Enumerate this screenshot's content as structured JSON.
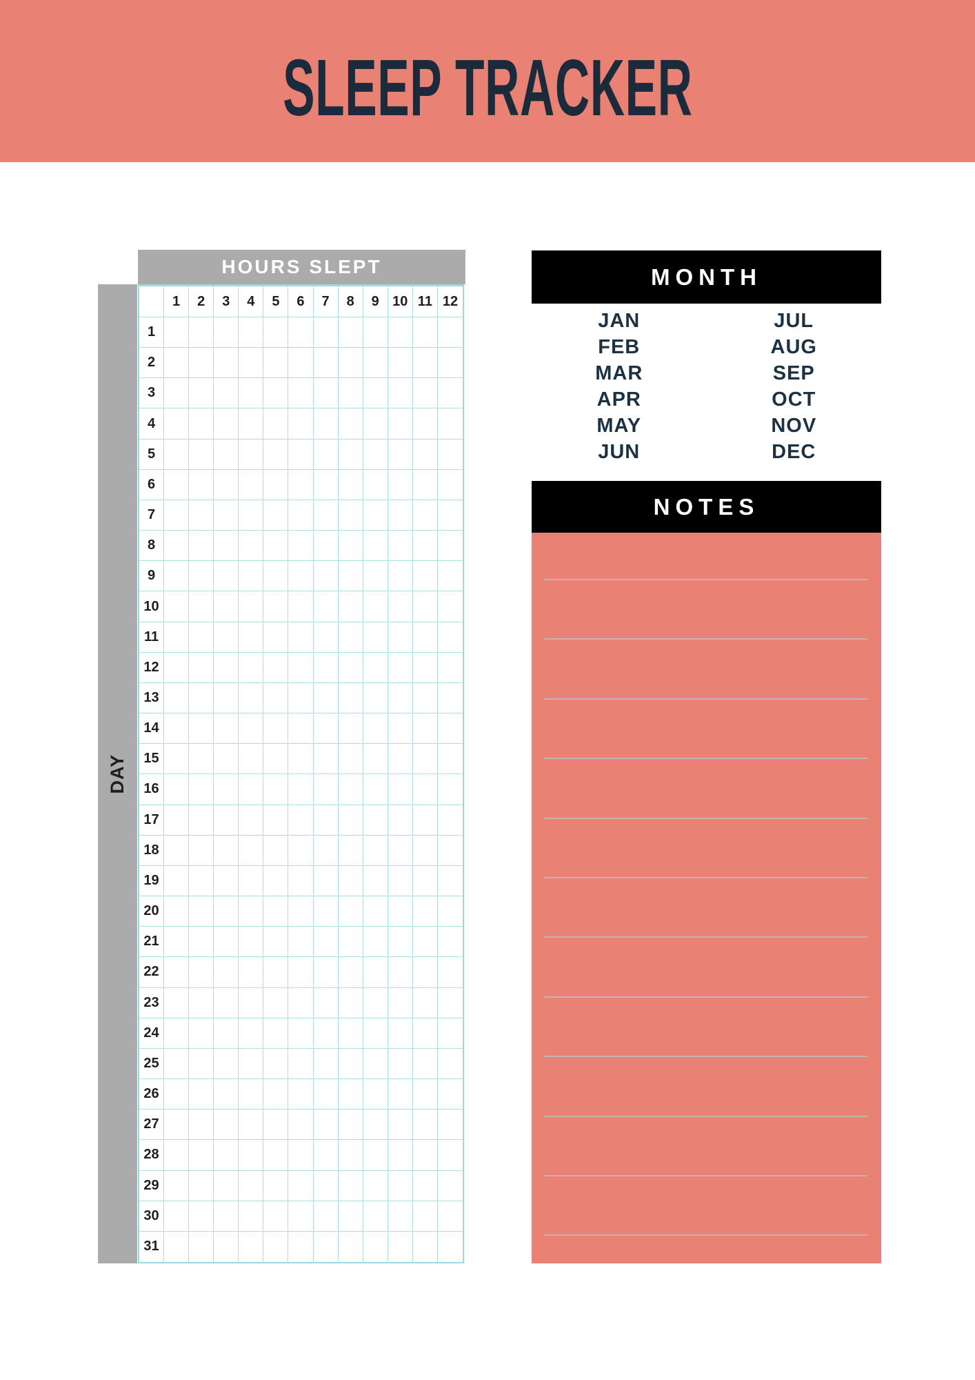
{
  "title": "SLEEP TRACKER",
  "hours_slept": {
    "header": "HOURS SLEPT",
    "hours": [
      "1",
      "2",
      "3",
      "4",
      "5",
      "6",
      "7",
      "8",
      "9",
      "10",
      "11",
      "12"
    ]
  },
  "day": {
    "label": "DAY",
    "days": [
      "1",
      "2",
      "3",
      "4",
      "5",
      "6",
      "7",
      "8",
      "9",
      "10",
      "11",
      "12",
      "13",
      "14",
      "15",
      "16",
      "17",
      "18",
      "19",
      "20",
      "21",
      "22",
      "23",
      "24",
      "25",
      "26",
      "27",
      "28",
      "29",
      "30",
      "31"
    ]
  },
  "month": {
    "header": "MONTH",
    "first_half": [
      "JAN",
      "FEB",
      "MAR",
      "APR",
      "MAY",
      "JUN"
    ],
    "second_half": [
      "JUL",
      "AUG",
      "SEP",
      "OCT",
      "NOV",
      "DEC"
    ]
  },
  "notes": {
    "header": "NOTES",
    "line_count": 12
  },
  "colors": {
    "coral": "#E98275",
    "navy": "#1B2B3B",
    "navy_months": "#1C3242",
    "bar_gray": "#ABABAB",
    "grid_line": "#ABE0E5",
    "grid_border": "#9AD9DF",
    "bar_black": "#000000",
    "note_line": "#C4B4B0",
    "number_ink": "#1E1E1E",
    "paper": "#FFFFFF"
  }
}
